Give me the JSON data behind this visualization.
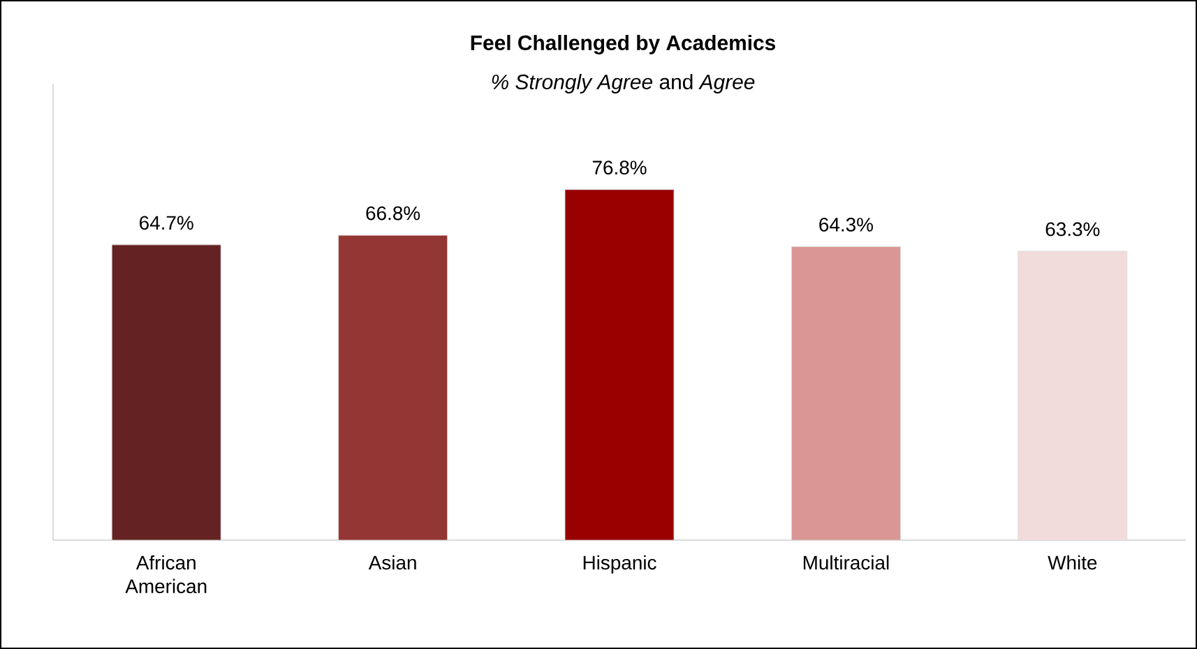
{
  "chart_data": {
    "type": "bar",
    "title": "Feel Challenged by Academics",
    "subtitle": "*% Strongly Agree* and *Agree*",
    "categories": [
      "African American",
      "Asian",
      "Hispanic",
      "Multiracial",
      "White"
    ],
    "values": [
      64.7,
      66.8,
      76.8,
      64.3,
      63.3
    ],
    "value_labels": [
      "64.7%",
      "66.8%",
      "76.8%",
      "64.3%",
      "63.3%"
    ],
    "colors": [
      "#652222",
      "#943634",
      "#990000",
      "#d99694",
      "#f2dcdb"
    ],
    "ylim": [
      0,
      100
    ],
    "tick_labels": "x"
  }
}
